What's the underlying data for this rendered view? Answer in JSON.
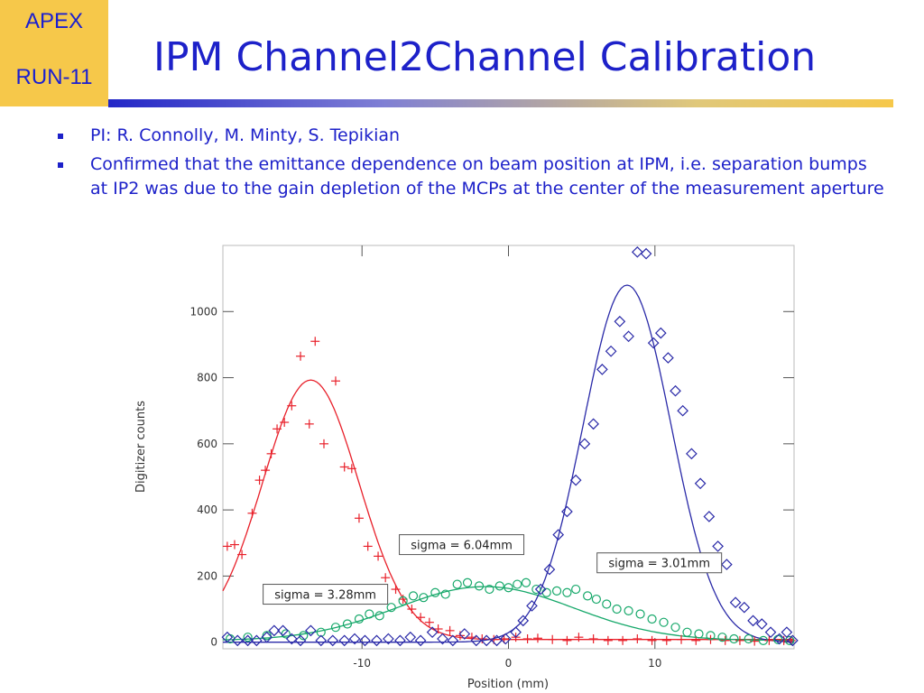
{
  "badge": {
    "line1": "APEX",
    "line2": "RUN-11"
  },
  "title": "IPM Channel2Channel Calibration",
  "bullets": [
    "PI: R. Connolly, M. Minty, S. Tepikian",
    "Confirmed that the emittance dependence on beam position at IPM, i.e. separation bumps at IP2 was due to the gain depletion of the MCPs at the center of the measurement aperture"
  ],
  "colors": {
    "title": "#1d21c9",
    "badge_bg": "#f6c84a",
    "red": "#e8202a",
    "green": "#16a86a",
    "blue": "#2a2aa8"
  },
  "chart_data": {
    "type": "scatter",
    "xlabel": "Position (mm)",
    "ylabel": "Digitizer counts",
    "xlim": [
      -19.5,
      19.5
    ],
    "ylim": [
      -20,
      1200
    ],
    "x_ticks": [
      -10,
      0,
      10
    ],
    "y_ticks": [
      0,
      200,
      400,
      600,
      800,
      1000
    ],
    "grid": false,
    "series": [
      {
        "color": "#e8202a",
        "marker": "plus",
        "fit": {
          "amplitude": 785,
          "center": -13.5,
          "sigma": 3.28,
          "offset": 8
        },
        "points": [
          [
            -19.2,
            290
          ],
          [
            -18.7,
            295
          ],
          [
            -18.2,
            265
          ],
          [
            -17.5,
            390
          ],
          [
            -17,
            490
          ],
          [
            -16.6,
            520
          ],
          [
            -16.2,
            570
          ],
          [
            -15.8,
            645
          ],
          [
            -15.3,
            665
          ],
          [
            -14.8,
            715
          ],
          [
            -14.2,
            865
          ],
          [
            -13.6,
            660
          ],
          [
            -13.2,
            910
          ],
          [
            -12.6,
            600
          ],
          [
            -11.8,
            790
          ],
          [
            -11.2,
            530
          ],
          [
            -10.7,
            525
          ],
          [
            -10.2,
            375
          ],
          [
            -9.6,
            290
          ],
          [
            -8.9,
            260
          ],
          [
            -8.4,
            195
          ],
          [
            -7.7,
            160
          ],
          [
            -7.2,
            130
          ],
          [
            -6.6,
            100
          ],
          [
            -6,
            75
          ],
          [
            -5.4,
            60
          ],
          [
            -4.8,
            40
          ],
          [
            -4,
            35
          ],
          [
            -3.3,
            20
          ],
          [
            -2.5,
            15
          ],
          [
            -1.8,
            10
          ],
          [
            -1,
            8
          ],
          [
            -0.3,
            10
          ],
          [
            0.5,
            15
          ],
          [
            1.3,
            10
          ],
          [
            2,
            12
          ],
          [
            3,
            8
          ],
          [
            4,
            5
          ],
          [
            4.8,
            15
          ],
          [
            5.8,
            10
          ],
          [
            6.8,
            5
          ],
          [
            7.8,
            5
          ],
          [
            8.8,
            10
          ],
          [
            9.8,
            5
          ],
          [
            10.8,
            5
          ],
          [
            11.8,
            8
          ],
          [
            12.8,
            5
          ],
          [
            13.8,
            8
          ],
          [
            14.8,
            5
          ],
          [
            15.8,
            5
          ],
          [
            16.8,
            3
          ],
          [
            17.8,
            5
          ],
          [
            18.8,
            5
          ],
          [
            19.3,
            5
          ]
        ]
      },
      {
        "color": "#16a86a",
        "marker": "circle",
        "fit": {
          "amplitude": 163,
          "center": -1.6,
          "sigma": 6.04,
          "offset": 5
        },
        "points": [
          [
            -19,
            10
          ],
          [
            -17.8,
            15
          ],
          [
            -16.5,
            20
          ],
          [
            -15.2,
            25
          ],
          [
            -14,
            20
          ],
          [
            -12.8,
            30
          ],
          [
            -11.8,
            45
          ],
          [
            -11,
            55
          ],
          [
            -10.2,
            70
          ],
          [
            -9.5,
            85
          ],
          [
            -8.8,
            80
          ],
          [
            -8,
            105
          ],
          [
            -7.2,
            125
          ],
          [
            -6.5,
            140
          ],
          [
            -5.8,
            135
          ],
          [
            -5,
            150
          ],
          [
            -4.3,
            145
          ],
          [
            -3.5,
            175
          ],
          [
            -2.8,
            180
          ],
          [
            -2,
            170
          ],
          [
            -1.3,
            160
          ],
          [
            -0.6,
            170
          ],
          [
            0,
            165
          ],
          [
            0.6,
            175
          ],
          [
            1.2,
            180
          ],
          [
            1.9,
            160
          ],
          [
            2.6,
            150
          ],
          [
            3.3,
            155
          ],
          [
            4,
            150
          ],
          [
            4.6,
            160
          ],
          [
            5.4,
            140
          ],
          [
            6,
            130
          ],
          [
            6.7,
            115
          ],
          [
            7.4,
            100
          ],
          [
            8.2,
            95
          ],
          [
            9,
            85
          ],
          [
            9.8,
            70
          ],
          [
            10.6,
            60
          ],
          [
            11.4,
            45
          ],
          [
            12.2,
            30
          ],
          [
            13,
            25
          ],
          [
            13.8,
            20
          ],
          [
            14.6,
            15
          ],
          [
            15.4,
            10
          ],
          [
            16.4,
            10
          ],
          [
            17.4,
            5
          ],
          [
            18.4,
            8
          ],
          [
            19.2,
            5
          ]
        ]
      },
      {
        "color": "#2a2aa8",
        "marker": "diamond",
        "fit": {
          "amplitude": 1080,
          "center": 8.1,
          "sigma": 3.01,
          "offset": 0
        },
        "points": [
          [
            -19.2,
            15
          ],
          [
            -18.5,
            5
          ],
          [
            -17.8,
            5
          ],
          [
            -17.2,
            5
          ],
          [
            -16.5,
            15
          ],
          [
            -16,
            35
          ],
          [
            -15.4,
            35
          ],
          [
            -14.8,
            10
          ],
          [
            -14.2,
            5
          ],
          [
            -13.5,
            35
          ],
          [
            -12.8,
            5
          ],
          [
            -12,
            5
          ],
          [
            -11.2,
            5
          ],
          [
            -10.5,
            10
          ],
          [
            -9.8,
            5
          ],
          [
            -9,
            5
          ],
          [
            -8.2,
            10
          ],
          [
            -7.4,
            5
          ],
          [
            -6.7,
            15
          ],
          [
            -6,
            5
          ],
          [
            -5.2,
            30
          ],
          [
            -4.5,
            10
          ],
          [
            -3.8,
            5
          ],
          [
            -3,
            25
          ],
          [
            -2.2,
            5
          ],
          [
            -1.5,
            5
          ],
          [
            -0.8,
            5
          ],
          [
            -0.2,
            10
          ],
          [
            0.5,
            30
          ],
          [
            1,
            65
          ],
          [
            1.6,
            110
          ],
          [
            2.2,
            160
          ],
          [
            2.8,
            220
          ],
          [
            3.4,
            325
          ],
          [
            4,
            395
          ],
          [
            4.6,
            490
          ],
          [
            5.2,
            600
          ],
          [
            5.8,
            660
          ],
          [
            6.4,
            825
          ],
          [
            7,
            880
          ],
          [
            7.6,
            970
          ],
          [
            8.2,
            925
          ],
          [
            8.8,
            1180
          ],
          [
            9.4,
            1175
          ],
          [
            9.9,
            905
          ],
          [
            10.4,
            935
          ],
          [
            10.9,
            860
          ],
          [
            11.4,
            760
          ],
          [
            11.9,
            700
          ],
          [
            12.5,
            570
          ],
          [
            13.1,
            480
          ],
          [
            13.7,
            380
          ],
          [
            14.3,
            290
          ],
          [
            14.9,
            235
          ],
          [
            15.5,
            120
          ],
          [
            16.1,
            105
          ],
          [
            16.7,
            65
          ],
          [
            17.3,
            55
          ],
          [
            17.9,
            30
          ],
          [
            18.5,
            10
          ],
          [
            19,
            30
          ],
          [
            19.4,
            5
          ]
        ]
      }
    ],
    "annotations": [
      {
        "text": "sigma = 3.28mm",
        "x": -12.5,
        "y": 145,
        "color": "#e8202a"
      },
      {
        "text": "sigma = 6.04mm",
        "x": -3.2,
        "y": 295,
        "color": "#16a86a"
      },
      {
        "text": "sigma = 3.01mm",
        "x": 10.3,
        "y": 240,
        "color": "#2a2aa8"
      }
    ]
  }
}
